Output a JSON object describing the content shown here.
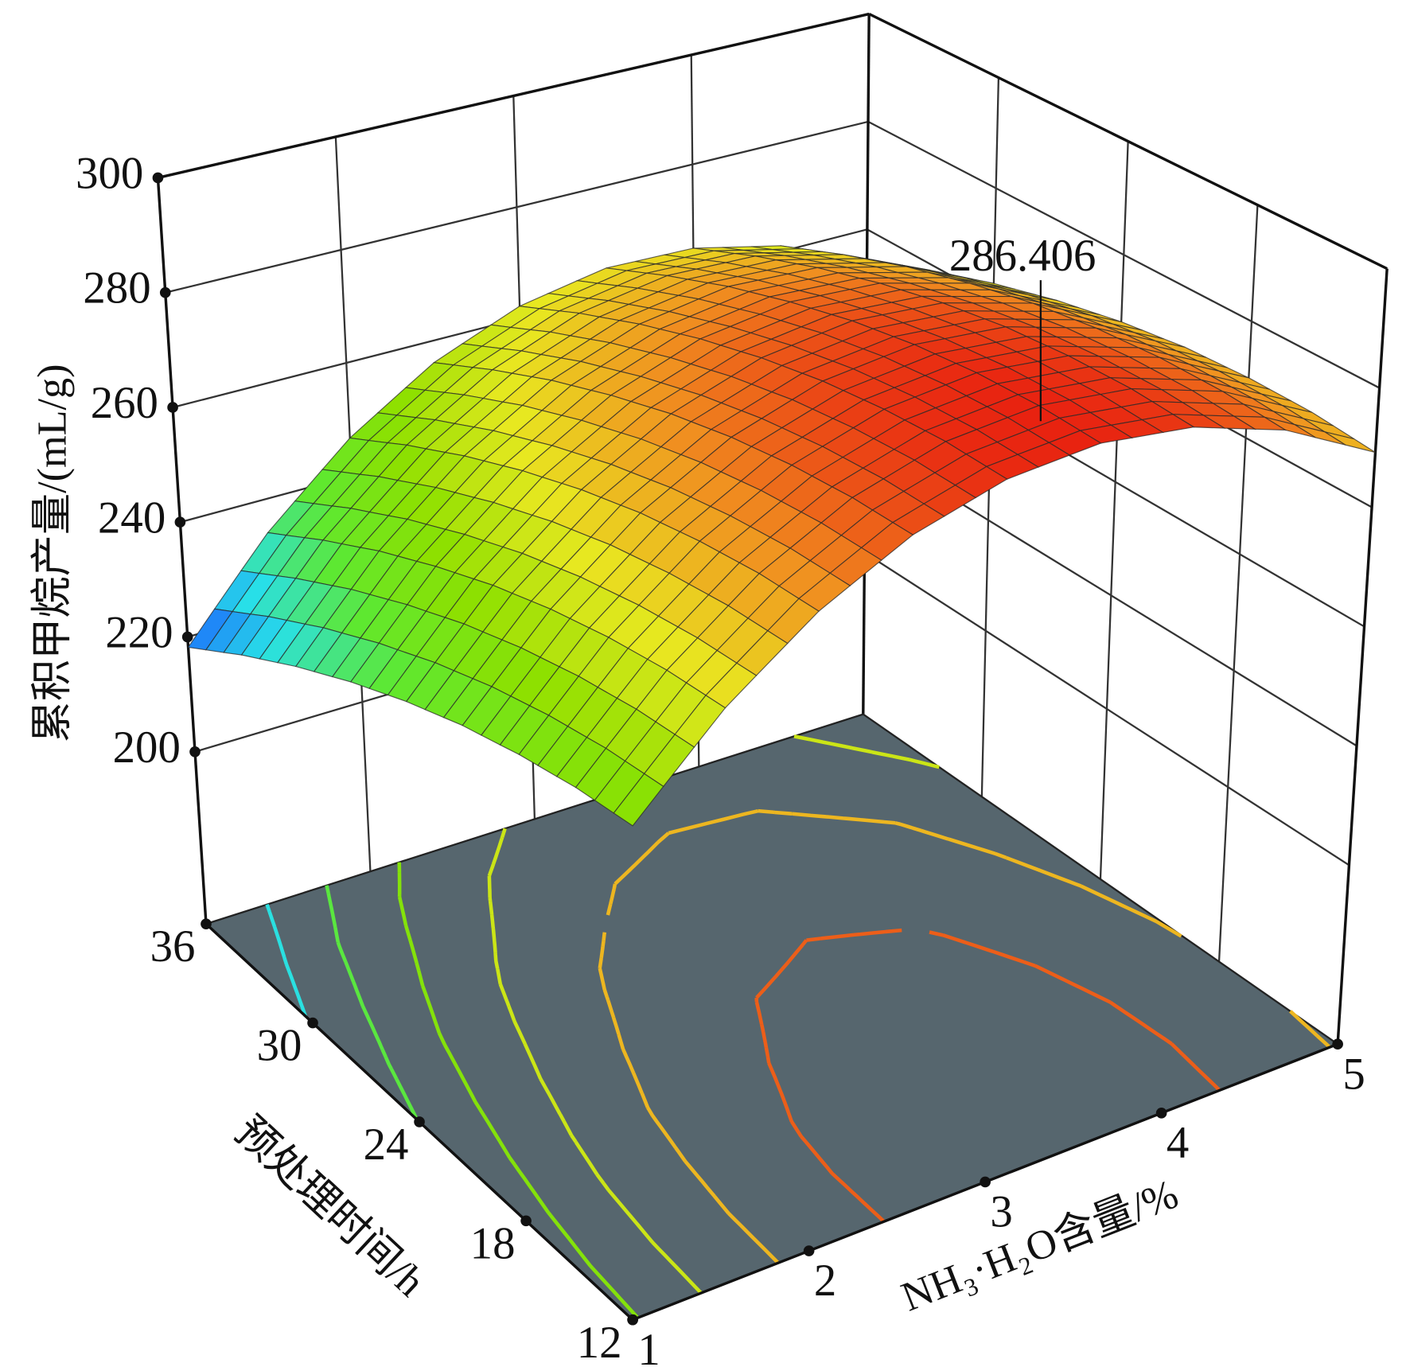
{
  "chart_data": {
    "type": "surface3d",
    "xlabel": "NH₃·H₂O含量/%",
    "ylabel": "预处理时间/h",
    "zlabel": "累积甲烷产量/(mL/g)",
    "xlim": [
      1,
      5
    ],
    "xticks": [
      1,
      2,
      3,
      4,
      5
    ],
    "ylim": [
      12,
      36
    ],
    "yticks": [
      12,
      18,
      24,
      30,
      36
    ],
    "zlim": [
      170,
      300
    ],
    "zticks": [
      200,
      220,
      240,
      260,
      280,
      300
    ],
    "x": [
      1,
      1.5,
      2,
      2.5,
      3,
      3.5,
      4,
      4.5,
      5
    ],
    "y": [
      12,
      15,
      18,
      21,
      24,
      27,
      30,
      33,
      36
    ],
    "z": [
      [
        249.2,
        263.1,
        273.7,
        281.1,
        285.2,
        286.1,
        283.7,
        278.1,
        269.2
      ],
      [
        248.2,
        262.3,
        273.2,
        280.8,
        285.2,
        286.3,
        284.2,
        278.8,
        270.2
      ],
      [
        246.3,
        260.7,
        271.8,
        279.7,
        284.3,
        285.7,
        283.8,
        278.7,
        270.3
      ],
      [
        243.7,
        258.3,
        269.7,
        277.8,
        282.7,
        284.3,
        282.7,
        277.8,
        269.7
      ],
      [
        240.2,
        255.1,
        266.7,
        275.1,
        280.2,
        282.1,
        280.7,
        276.1,
        268.2
      ],
      [
        235.9,
        251.0,
        262.9,
        271.5,
        276.9,
        279.0,
        277.9,
        273.5,
        265.9
      ],
      [
        230.8,
        246.2,
        258.3,
        267.2,
        272.8,
        275.2,
        274.3,
        270.2,
        262.8
      ],
      [
        224.9,
        240.5,
        252.9,
        262.0,
        267.9,
        270.5,
        269.9,
        266.0,
        258.9
      ],
      [
        218.2,
        234.1,
        246.7,
        256.1,
        262.2,
        265.1,
        264.7,
        261.1,
        254.2
      ]
    ],
    "colorscale": [
      "#1a5cff",
      "#28e0e8",
      "#5ee830",
      "#8ee000",
      "#e8e820",
      "#f09020",
      "#e82010"
    ],
    "contour_levels": [
      230,
      240,
      250,
      260,
      270,
      280
    ],
    "floor_color": "#56666e",
    "annotations": [
      {
        "text": "286.406",
        "x": 3.41,
        "y": 14.1,
        "z": 286.406
      }
    ]
  }
}
